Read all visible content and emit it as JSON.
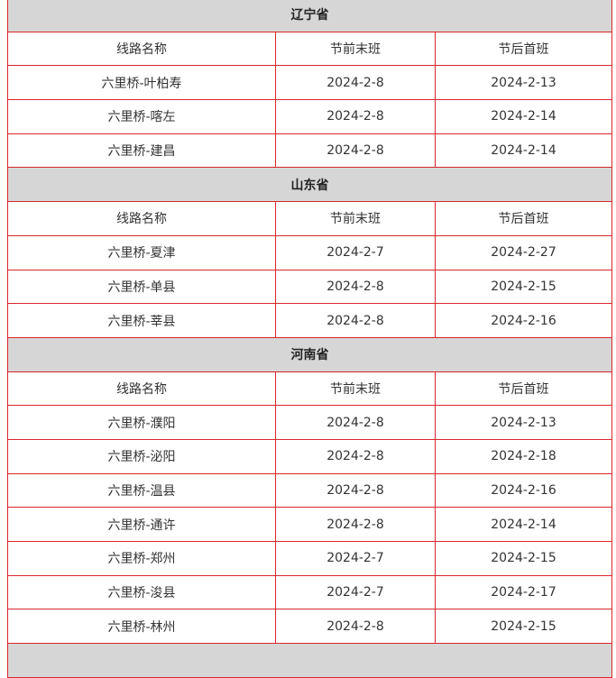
{
  "provinces": [
    {
      "name": "辽宁省",
      "headers": [
        "线路名称",
        "节前末班",
        "节后首班"
      ],
      "rows": [
        [
          "六里桥-叶柏寿",
          "2024-2-8",
          "2024-2-13"
        ],
        [
          "六里桥-喀左",
          "2024-2-8",
          "2024-2-14"
        ],
        [
          "六里桥-建昌",
          "2024-2-8",
          "2024-2-14"
        ]
      ]
    },
    {
      "name": "山东省",
      "headers": [
        "线路名称",
        "节前末班",
        "节后首班"
      ],
      "rows": [
        [
          "六里桥-夏津",
          "2024-2-7",
          "2024-2-27"
        ],
        [
          "六里桥-单县",
          "2024-2-8",
          "2024-2-15"
        ],
        [
          "六里桥-莘县",
          "2024-2-8",
          "2024-2-16"
        ]
      ]
    },
    {
      "name": "河南省",
      "headers": [
        "线路名称",
        "节前末班",
        "节后首班"
      ],
      "rows": [
        [
          "六里桥-濮阳",
          "2024-2-8",
          "2024-2-13"
        ],
        [
          "六里桥-泌阳",
          "2024-2-8",
          "2024-2-18"
        ],
        [
          "六里桥-温县",
          "2024-2-8",
          "2024-2-16"
        ],
        [
          "六里桥-通许",
          "2024-2-8",
          "2024-2-14"
        ],
        [
          "六里桥-郑州",
          "2024-2-7",
          "2024-2-15"
        ],
        [
          "六里桥-浚县",
          "2024-2-7",
          "2024-2-17"
        ],
        [
          "六里桥-林州",
          "2024-2-8",
          "2024-2-15"
        ]
      ]
    }
  ],
  "colors": {
    "border": "#d9262c",
    "section_bg": "#d6d6d6"
  }
}
